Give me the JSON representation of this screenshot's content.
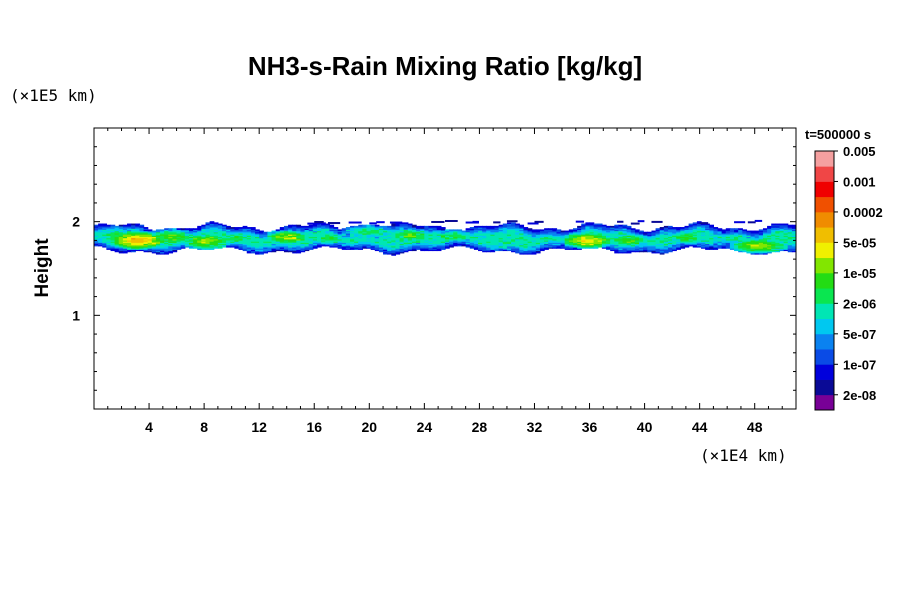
{
  "chart_data": {
    "type": "heatmap",
    "title": "NH3-s-Rain Mixing Ratio [kg/kg]",
    "ylabel": "Height",
    "xlabel": "",
    "x_unit": "(×1E4 km)",
    "y_unit": "(×1E5 km)",
    "time_label": "t=500000 s",
    "xlim": [
      0,
      51
    ],
    "ylim": [
      0,
      3
    ],
    "x_ticks": [
      "4",
      "8",
      "12",
      "16",
      "20",
      "24",
      "28",
      "32",
      "36",
      "40",
      "44",
      "48"
    ],
    "x_tick_values": [
      4,
      8,
      12,
      16,
      20,
      24,
      28,
      32,
      36,
      40,
      44,
      48
    ],
    "y_ticks": [
      "1",
      "2"
    ],
    "y_tick_values": [
      1,
      2
    ],
    "colorbar": {
      "colors": [
        "#780096",
        "#0a0a96",
        "#0000dc",
        "#0a4be6",
        "#0a82f0",
        "#00c8f0",
        "#00e6b4",
        "#0ae650",
        "#23dc14",
        "#82e600",
        "#f0f000",
        "#f0be00",
        "#f08c00",
        "#f05000",
        "#f00000",
        "#f04646",
        "#f5a0a0"
      ],
      "labels": [
        "2e-08",
        "1e-07",
        "5e-07",
        "2e-06",
        "1e-05",
        "5e-05",
        "0.0002",
        "0.001",
        "0.005"
      ]
    },
    "cloud_layer": {
      "height_range": [
        1.65,
        1.97
      ],
      "cells": [
        {
          "x": 1.5,
          "xw": 1.8,
          "y": 1.85,
          "yh": 0.1,
          "level": 7
        },
        {
          "x": 3.0,
          "xw": 2.2,
          "y": 1.8,
          "yh": 0.1,
          "level": 11
        },
        {
          "x": 5.5,
          "xw": 2.0,
          "y": 1.83,
          "yh": 0.09,
          "level": 8
        },
        {
          "x": 8.0,
          "xw": 2.0,
          "y": 1.79,
          "yh": 0.09,
          "level": 9
        },
        {
          "x": 10.3,
          "xw": 1.5,
          "y": 1.82,
          "yh": 0.08,
          "level": 7
        },
        {
          "x": 14.0,
          "xw": 1.8,
          "y": 1.83,
          "yh": 0.08,
          "level": 9
        },
        {
          "x": 17.0,
          "xw": 1.6,
          "y": 1.82,
          "yh": 0.07,
          "level": 7
        },
        {
          "x": 19.8,
          "xw": 2.0,
          "y": 1.89,
          "yh": 0.07,
          "level": 7
        },
        {
          "x": 22.8,
          "xw": 1.8,
          "y": 1.85,
          "yh": 0.08,
          "level": 8
        },
        {
          "x": 25.8,
          "xw": 2.2,
          "y": 1.84,
          "yh": 0.07,
          "level": 7
        },
        {
          "x": 29.3,
          "xw": 1.5,
          "y": 1.76,
          "yh": 0.08,
          "level": 6
        },
        {
          "x": 31.5,
          "xw": 0.8,
          "y": 1.75,
          "yh": 0.05,
          "level": 4
        },
        {
          "x": 35.7,
          "xw": 2.0,
          "y": 1.8,
          "yh": 0.09,
          "level": 10
        },
        {
          "x": 38.7,
          "xw": 1.7,
          "y": 1.8,
          "yh": 0.08,
          "level": 8
        },
        {
          "x": 43.0,
          "xw": 1.3,
          "y": 1.83,
          "yh": 0.08,
          "level": 8
        },
        {
          "x": 48.2,
          "xw": 2.3,
          "y": 1.74,
          "yh": 0.08,
          "level": 9
        }
      ]
    }
  }
}
